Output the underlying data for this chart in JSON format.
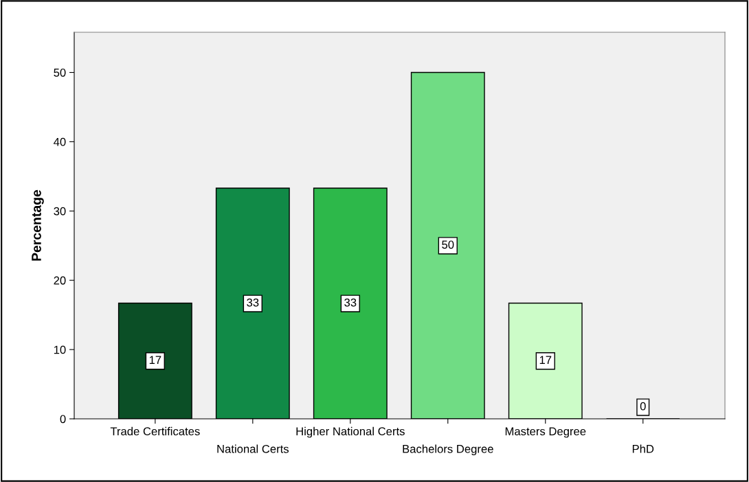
{
  "chart_data": {
    "type": "bar",
    "ylabel": "Percentage",
    "categories": [
      "Trade Certificates",
      "National Certs",
      "Higher National Certs",
      "Bachelors Degree",
      "Masters Degree",
      "PhD"
    ],
    "values": [
      16.7,
      33.3,
      33.3,
      50,
      16.7,
      0
    ],
    "value_labels": [
      "17",
      "33",
      "33",
      "50",
      "17",
      "0"
    ],
    "colors": [
      "#0b4f26",
      "#118a47",
      "#2db84a",
      "#70dc84",
      "#ccfcc8",
      "#000000"
    ],
    "ylim": [
      0,
      55.8
    ],
    "yticks": [
      0,
      10,
      20,
      30,
      40,
      50
    ],
    "grid": false,
    "legend": false
  }
}
